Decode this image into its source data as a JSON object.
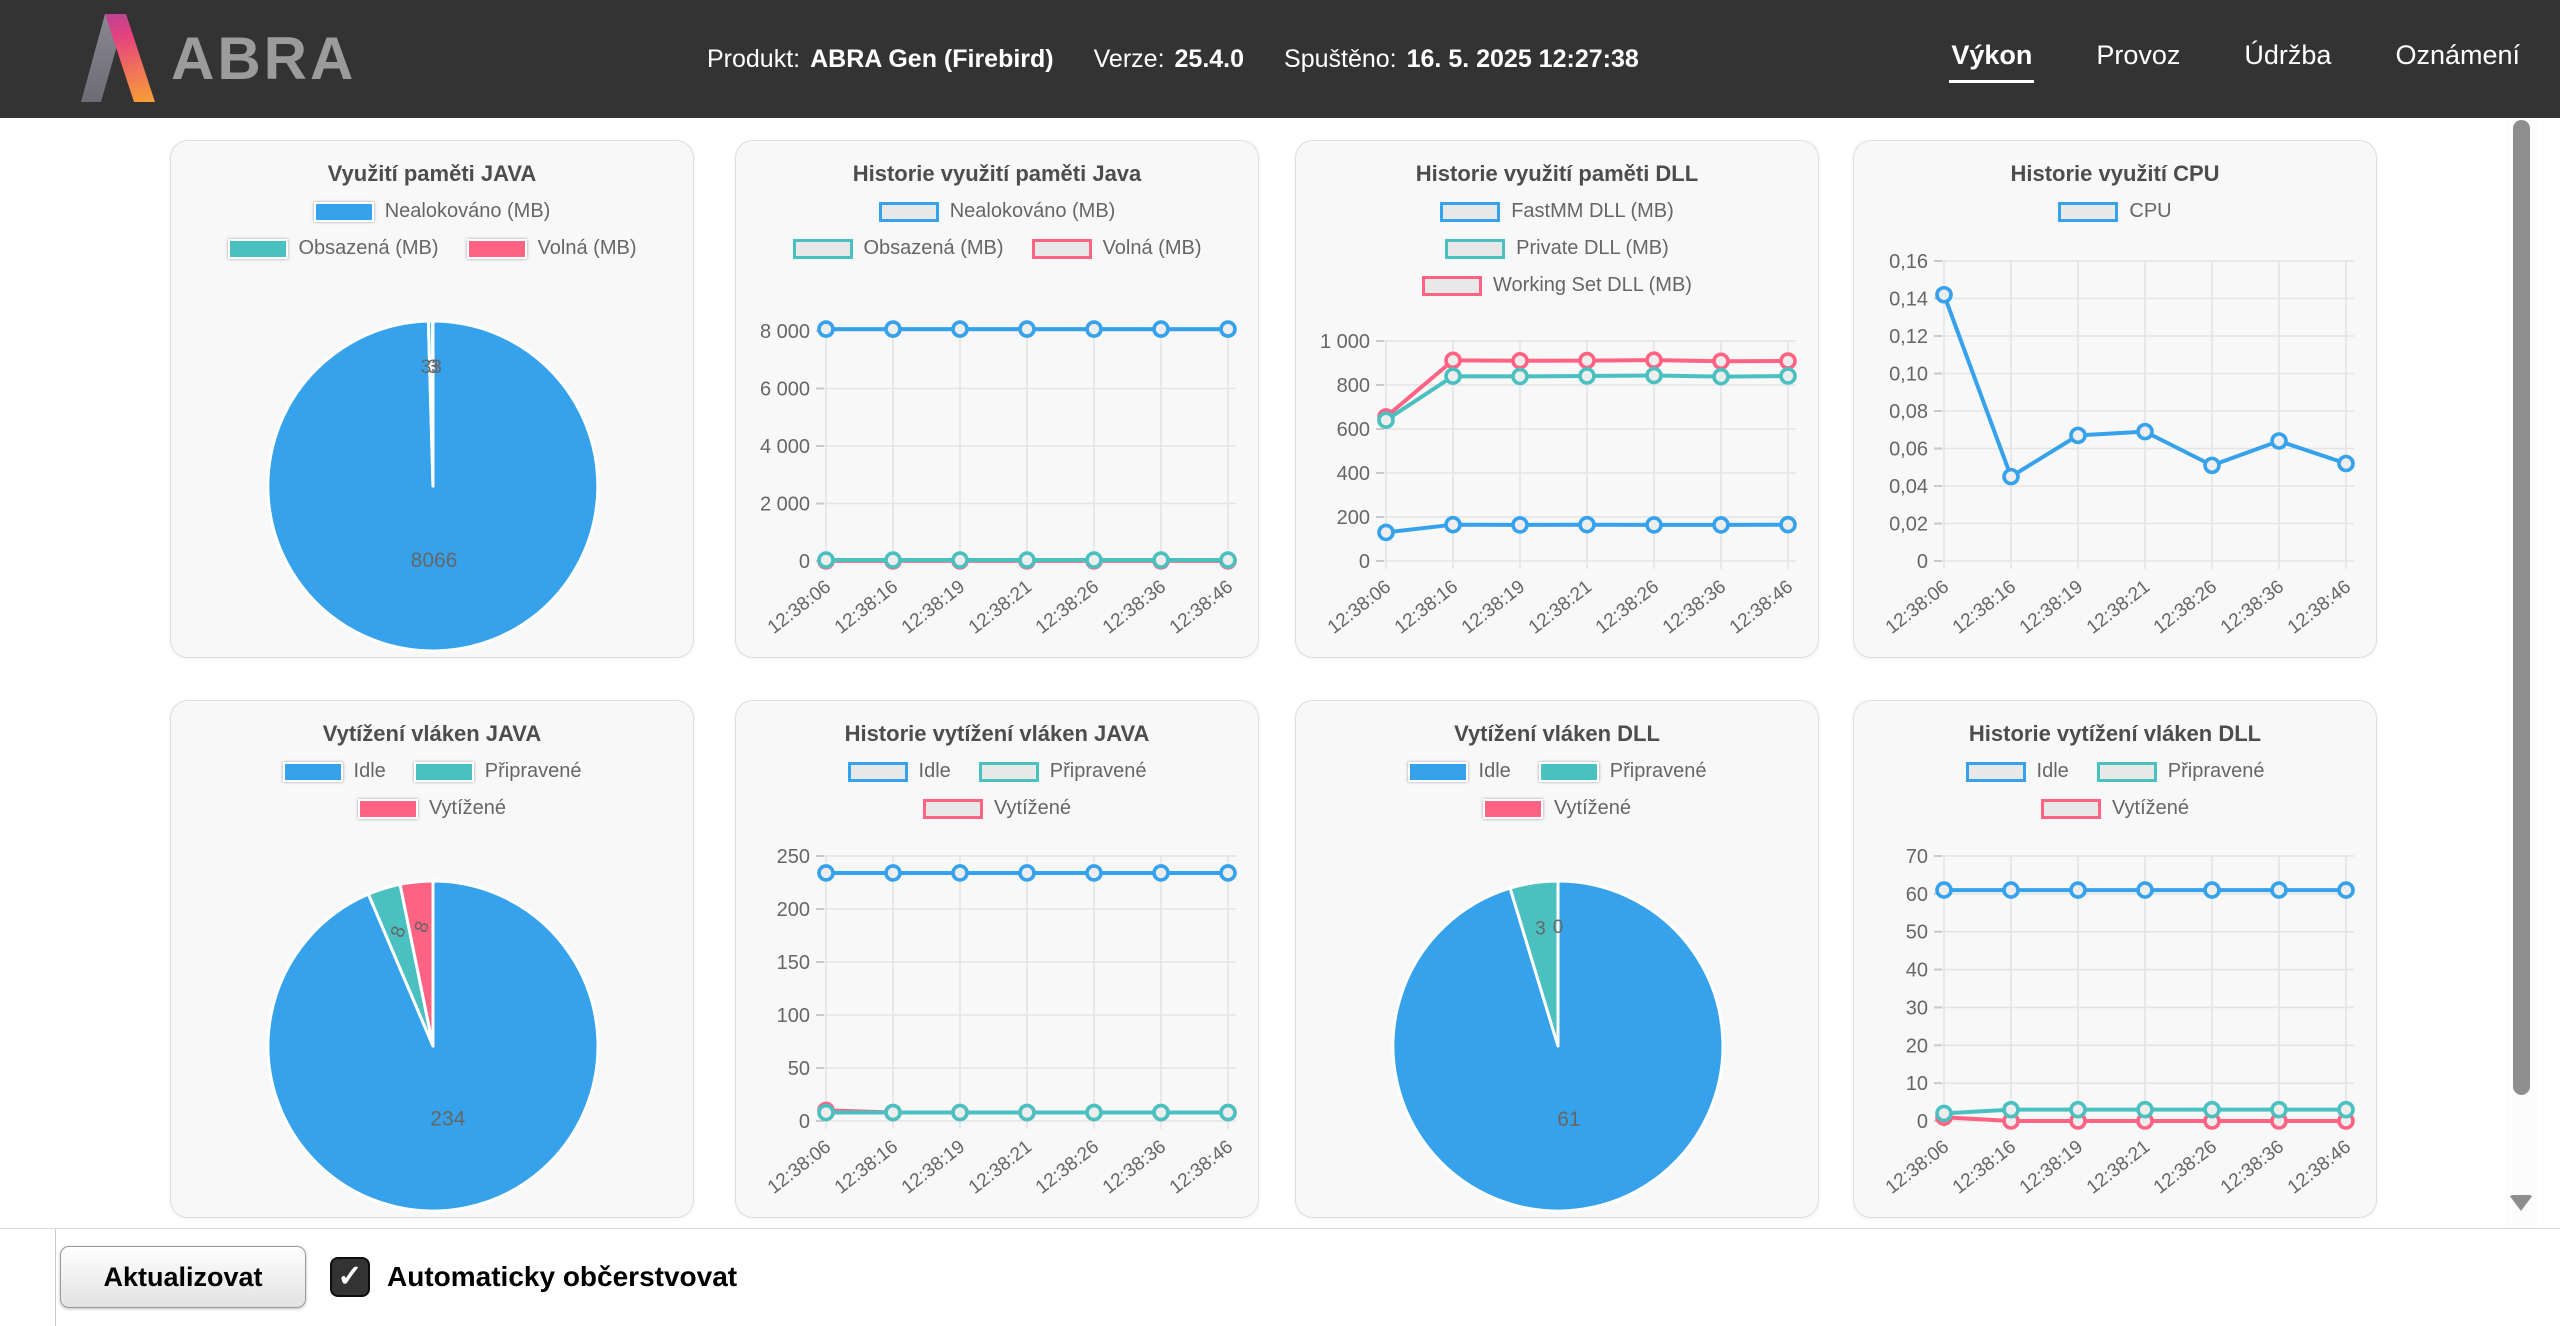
{
  "header": {
    "logo_text": "ABRA",
    "product": {
      "label": "Produkt:",
      "value": "ABRA Gen (Firebird)"
    },
    "version": {
      "label": "Verze:",
      "value": "25.4.0"
    },
    "started": {
      "label": "Spuštěno:",
      "value": "16. 5. 2025 12:27:38"
    },
    "nav": [
      {
        "label": "Výkon",
        "active": true
      },
      {
        "label": "Provoz",
        "active": false
      },
      {
        "label": "Údržba",
        "active": false
      },
      {
        "label": "Oznámení",
        "active": false
      }
    ]
  },
  "colors": {
    "blue": "#36A2EB",
    "teal": "#4BC0C0",
    "pink": "#FF6384",
    "legend_fill": "#E8E8E8",
    "grid": "#E4E4E4",
    "tick_text": "#666666",
    "title_text": "#4D4D4D",
    "header_bg": "#333333"
  },
  "icons": {
    "check": "✓"
  },
  "time_labels": [
    "12:38:06",
    "12:38:16",
    "12:38:19",
    "12:38:21",
    "12:38:26",
    "12:38:36",
    "12:38:46"
  ],
  "chart_data": [
    {
      "type": "pie",
      "title": "Využití paměti JAVA",
      "legend_style": "solid",
      "legend_rows": [
        [
          0
        ],
        [
          1,
          2
        ]
      ],
      "series": [
        {
          "name": "Nealokováno (MB)",
          "color": "#36A2EB",
          "value": 8066
        },
        {
          "name": "Obsazená (MB)",
          "color": "#4BC0C0",
          "value": 33
        },
        {
          "name": "Volná (MB)",
          "color": "#FF6384",
          "value": 3
        }
      ],
      "slice_labels": [
        "8066",
        "33",
        "3"
      ],
      "small_label_rotation": 0
    },
    {
      "type": "line",
      "title": "Historie využití paměti Java",
      "legend_style": "outline",
      "legend_rows": [
        [
          0
        ],
        [
          1,
          2
        ]
      ],
      "series": [
        {
          "name": "Nealokováno (MB)",
          "color": "#36A2EB",
          "values": [
            8066,
            8066,
            8066,
            8066,
            8066,
            8066,
            8066
          ]
        },
        {
          "name": "Obsazená (MB)",
          "color": "#4BC0C0",
          "values": [
            33,
            33,
            33,
            33,
            33,
            33,
            33
          ]
        },
        {
          "name": "Volná (MB)",
          "color": "#FF6384",
          "values": [
            3,
            3,
            3,
            3,
            3,
            3,
            3
          ]
        }
      ],
      "ylim": [
        0,
        8000
      ],
      "ytick_labels": [
        "8 000",
        "6 000",
        "4 000",
        "2 000",
        "0"
      ],
      "plot_top": 190,
      "grid": true,
      "legend_position": "top"
    },
    {
      "type": "line",
      "title": "Historie využití paměti DLL",
      "legend_style": "outline",
      "legend_rows": [
        [
          0
        ],
        [
          1
        ],
        [
          2
        ]
      ],
      "series": [
        {
          "name": "FastMM DLL (MB)",
          "color": "#36A2EB",
          "values": [
            130,
            165,
            164,
            165,
            164,
            164,
            165
          ]
        },
        {
          "name": "Private DLL (MB)",
          "color": "#4BC0C0",
          "values": [
            640,
            840,
            839,
            841,
            843,
            838,
            841
          ]
        },
        {
          "name": "Working Set DLL (MB)",
          "color": "#FF6384",
          "values": [
            655,
            912,
            910,
            911,
            913,
            908,
            909
          ]
        }
      ],
      "ylim": [
        0,
        1000
      ],
      "ytick_labels": [
        "1 000",
        "800",
        "600",
        "400",
        "200",
        "0"
      ],
      "plot_top": 200,
      "grid": true,
      "legend_position": "top"
    },
    {
      "type": "line",
      "title": "Historie využití CPU",
      "legend_style": "outline",
      "legend_rows": [
        [
          0
        ]
      ],
      "series": [
        {
          "name": "CPU",
          "color": "#36A2EB",
          "values": [
            0.142,
            0.045,
            0.067,
            0.069,
            0.051,
            0.064,
            0.052
          ]
        }
      ],
      "ylim": [
        0,
        0.16
      ],
      "ytick_labels": [
        "0,16",
        "0,14",
        "0,12",
        "0,10",
        "0,08",
        "0,06",
        "0,04",
        "0,02",
        "0"
      ],
      "plot_top": 120,
      "grid": true,
      "legend_position": "top"
    },
    {
      "type": "pie",
      "title": "Vytížení vláken JAVA",
      "legend_style": "solid",
      "legend_rows": [
        [
          0,
          1
        ],
        [
          2
        ]
      ],
      "series": [
        {
          "name": "Idle",
          "color": "#36A2EB",
          "value": 234
        },
        {
          "name": "Připravené",
          "color": "#4BC0C0",
          "value": 8
        },
        {
          "name": "Vytížené",
          "color": "#FF6384",
          "value": 8
        }
      ],
      "slice_labels": [
        "234",
        "8",
        "8"
      ],
      "small_label_rotation": -72
    },
    {
      "type": "line",
      "title": "Historie vytížení vláken JAVA",
      "legend_style": "outline",
      "legend_rows": [
        [
          0,
          1
        ],
        [
          2
        ]
      ],
      "series": [
        {
          "name": "Idle",
          "color": "#36A2EB",
          "values": [
            234,
            234,
            234,
            234,
            234,
            234,
            234
          ]
        },
        {
          "name": "Připravené",
          "color": "#4BC0C0",
          "values": [
            8,
            8,
            8,
            8,
            8,
            8,
            8
          ]
        },
        {
          "name": "Vytížené",
          "color": "#FF6384",
          "values": [
            10,
            8,
            8,
            8,
            8,
            8,
            8
          ]
        }
      ],
      "ylim": [
        0,
        250
      ],
      "ytick_labels": [
        "250",
        "200",
        "150",
        "100",
        "50",
        "0"
      ],
      "plot_top": 155,
      "grid": true,
      "legend_position": "top"
    },
    {
      "type": "pie",
      "title": "Vytížení vláken DLL",
      "legend_style": "solid",
      "legend_rows": [
        [
          0,
          1
        ],
        [
          2
        ]
      ],
      "series": [
        {
          "name": "Idle",
          "color": "#36A2EB",
          "value": 61
        },
        {
          "name": "Připravené",
          "color": "#4BC0C0",
          "value": 3
        },
        {
          "name": "Vytížené",
          "color": "#FF6384",
          "value": 0
        }
      ],
      "slice_labels": [
        "61",
        "3",
        "0"
      ],
      "small_label_rotation": 0
    },
    {
      "type": "line",
      "title": "Historie vytížení vláken DLL",
      "legend_style": "outline",
      "legend_rows": [
        [
          0,
          1
        ],
        [
          2
        ]
      ],
      "series": [
        {
          "name": "Idle",
          "color": "#36A2EB",
          "values": [
            61,
            61,
            61,
            61,
            61,
            61,
            61
          ]
        },
        {
          "name": "Připravené",
          "color": "#4BC0C0",
          "values": [
            2,
            3,
            3,
            3,
            3,
            3,
            3
          ]
        },
        {
          "name": "Vytížené",
          "color": "#FF6384",
          "values": [
            1,
            0,
            0,
            0,
            0,
            0,
            0
          ]
        }
      ],
      "ylim": [
        0,
        70
      ],
      "ytick_labels": [
        "70",
        "60",
        "50",
        "40",
        "30",
        "20",
        "10",
        "0"
      ],
      "plot_top": 155,
      "grid": true,
      "legend_position": "top"
    }
  ],
  "footer": {
    "refresh_button": "Aktualizovat",
    "auto_refresh_label": "Automaticky občerstvovat",
    "auto_refresh_checked": true
  }
}
